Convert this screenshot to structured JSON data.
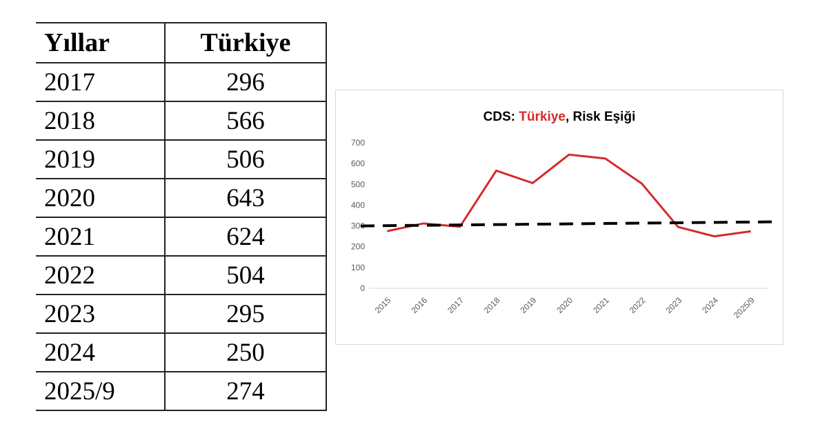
{
  "table": {
    "headers": [
      "Yıllar",
      "Türkiye"
    ],
    "rows": [
      [
        "2017",
        "296"
      ],
      [
        "2018",
        "566"
      ],
      [
        "2019",
        "506"
      ],
      [
        "2020",
        "643"
      ],
      [
        "2021",
        "624"
      ],
      [
        "2022",
        "504"
      ],
      [
        "2023",
        "295"
      ],
      [
        "2024",
        "250"
      ],
      [
        "2025/9",
        "274"
      ]
    ]
  },
  "chart_data": {
    "type": "line",
    "title": {
      "prefix": "CDS: ",
      "highlight": "Türkiye",
      "separator": ", ",
      "suffix": "Risk Eşiği"
    },
    "xlabel": "",
    "ylabel": "",
    "categories": [
      "2015",
      "2016",
      "2017",
      "2018",
      "2019",
      "2020",
      "2021",
      "2022",
      "2023",
      "2024",
      "2025/9"
    ],
    "ylim": [
      0,
      700
    ],
    "yticks": [
      "0",
      "100",
      "200",
      "300",
      "400",
      "500",
      "600",
      "700"
    ],
    "grid": false,
    "legend": "none",
    "series": [
      {
        "values": [
          275,
          312,
          296,
          566,
          506,
          643,
          624,
          504,
          295,
          250,
          274
        ],
        "color": "#d42a2a",
        "style": "solid"
      },
      {
        "values": [
          300,
          302,
          304,
          306,
          308,
          310,
          312,
          314,
          316,
          318,
          320
        ],
        "color": "#000000",
        "style": "dashed"
      }
    ]
  }
}
